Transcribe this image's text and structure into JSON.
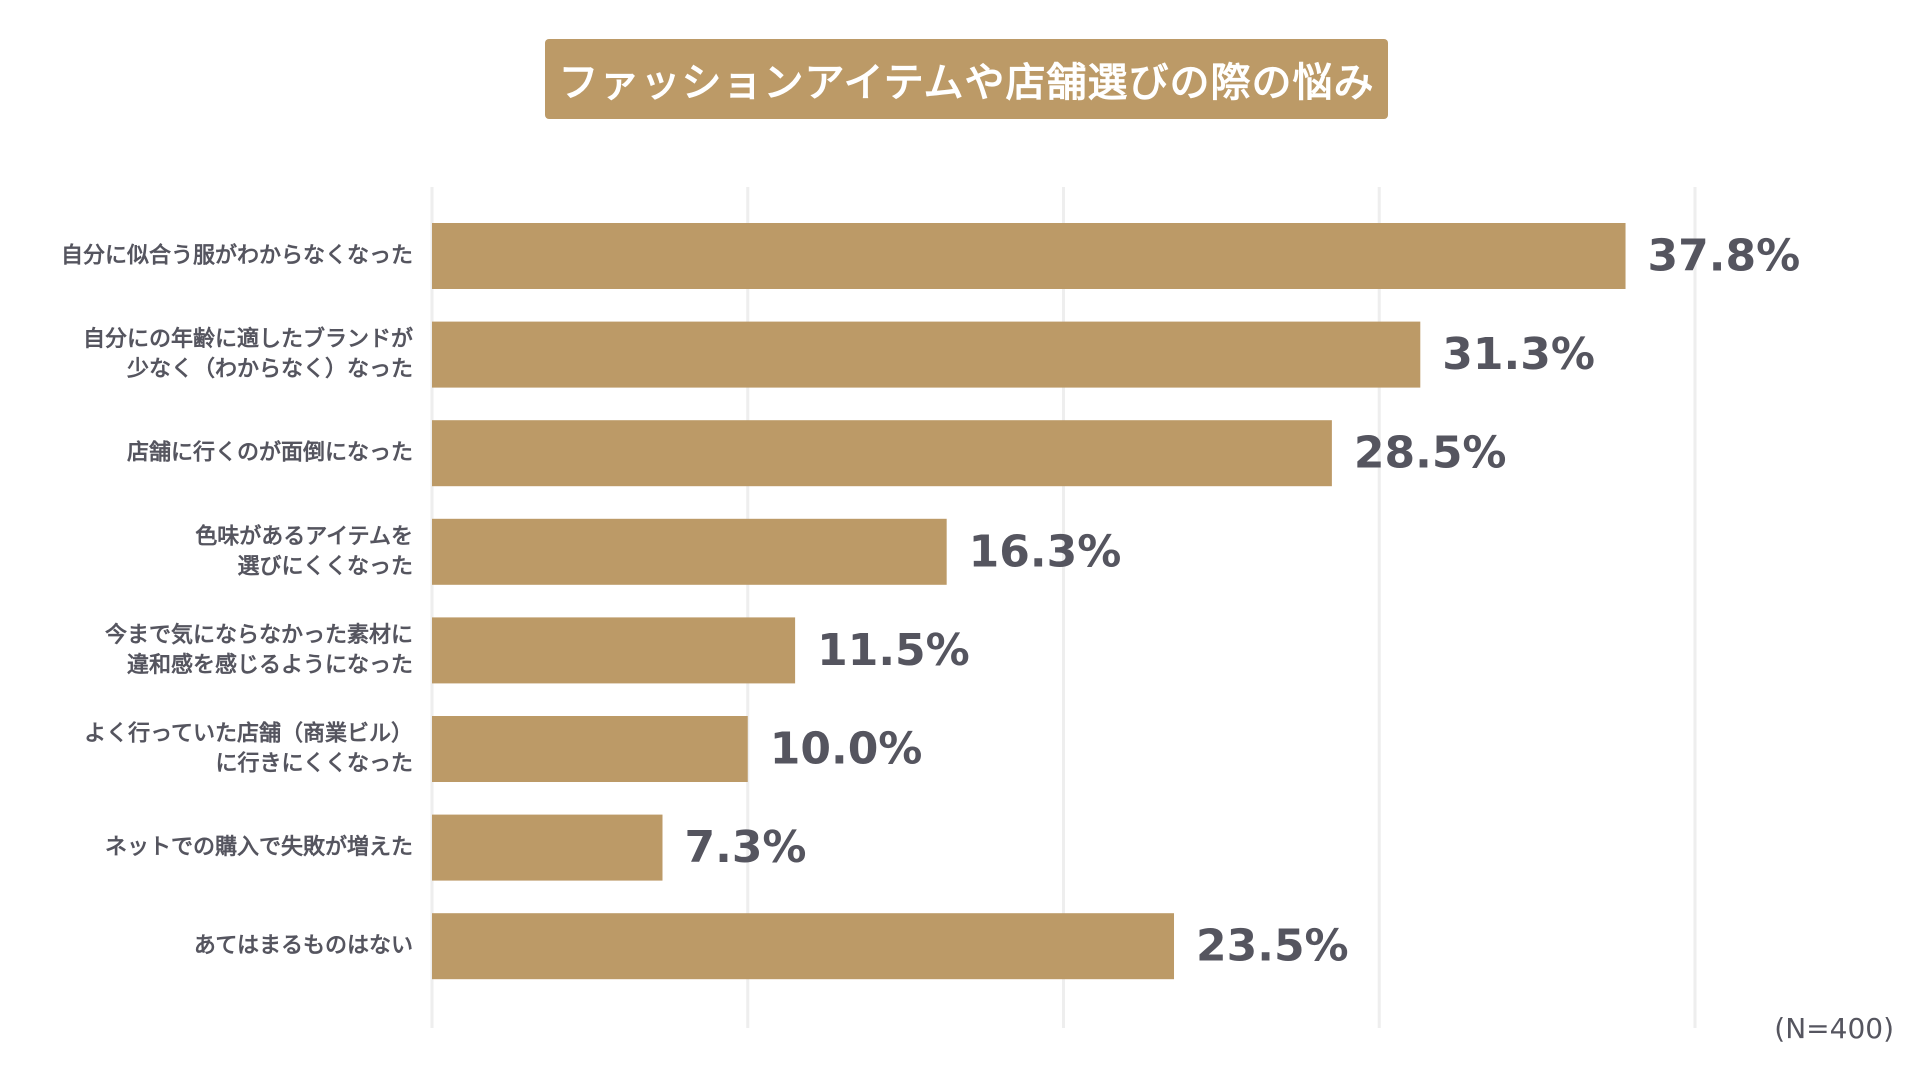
{
  "chart_data": {
    "type": "bar",
    "orientation": "horizontal",
    "title": "ファッションアイテムや店舗選びの際の悩み",
    "categories": [
      [
        "自分に似合う服がわからなくなった"
      ],
      [
        "自分にの年齢に適したブランドが",
        "少なく（わからなく）なった"
      ],
      [
        "店舗に行くのが面倒になった"
      ],
      [
        "色味があるアイテムを",
        "選びにくくなった"
      ],
      [
        "今まで気にならなかった素材に",
        "違和感を感じるようになった"
      ],
      [
        "よく行っていた店舗（商業ビル）",
        "に行きにくくなった"
      ],
      [
        "ネットでの購入で失敗が増えた"
      ],
      [
        "あてはまるものはない"
      ]
    ],
    "values": [
      37.8,
      31.3,
      28.5,
      16.3,
      11.5,
      10.0,
      7.3,
      23.5
    ],
    "value_labels": [
      "37.8%",
      "31.3%",
      "28.5%",
      "16.3%",
      "11.5%",
      "10.0%",
      "7.3%",
      "23.5%"
    ],
    "xlim": [
      0,
      40
    ],
    "grid": true,
    "bar_color": "#bc9a67",
    "label_color": "#55555f"
  },
  "footnote": "(N=400)"
}
